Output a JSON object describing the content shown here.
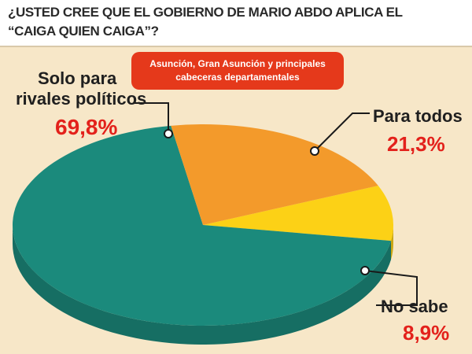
{
  "header": {
    "question_line1": "¿USTED CREE QUE EL GOBIERNO DE MARIO ABDO APLICA EL",
    "question_line2": "“CAIGA QUIEN CAIGA”?"
  },
  "region_box": {
    "line1": "Asunción, Gran Asunción y principales",
    "line2": "cabeceras departamentales"
  },
  "colors": {
    "background": "#f7e7c8",
    "region_box": "#e5391b",
    "percent_text": "#e3211b",
    "slice_rivales": "#1b8a7c",
    "slice_todos": "#f39a2b",
    "slice_nosabe": "#fcd116"
  },
  "chart_data": {
    "type": "pie",
    "title": "¿USTED CREE QUE EL GOBIERNO DE MARIO ABDO APLICA EL “CAIGA QUIEN CAIGA”?",
    "slices": [
      {
        "label_line1": "Solo para",
        "label_line2": "rivales políticos",
        "value": 69.8,
        "value_label": "69,8%",
        "color": "#1b8a7c"
      },
      {
        "label_line1": "Para todos",
        "label_line2": "",
        "value": 21.3,
        "value_label": "21,3%",
        "color": "#f39a2b"
      },
      {
        "label_line1": "No sabe",
        "label_line2": "",
        "value": 8.9,
        "value_label": "8,9%",
        "color": "#fcd116"
      }
    ]
  }
}
